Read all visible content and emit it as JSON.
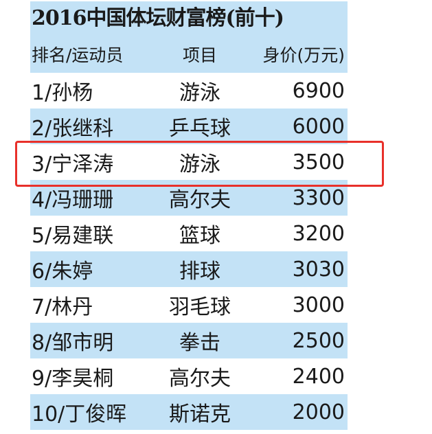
{
  "title": "2016中国体坛财富榜(前十)",
  "headers": [
    "排名/运动员",
    "项目",
    "身价(万元)"
  ],
  "rows": [
    {
      "athlete": "1/孙杨",
      "sport": "游泳",
      "value": "6900"
    },
    {
      "athlete": "2/张继科",
      "sport": "乒乓球",
      "value": "6000"
    },
    {
      "athlete": "3/宁泽涛",
      "sport": "游泳",
      "value": "3500"
    },
    {
      "athlete": "4/冯珊珊",
      "sport": "高尔夫",
      "value": "3300"
    },
    {
      "athlete": "5/易建联",
      "sport": "篮球",
      "value": "3200"
    },
    {
      "athlete": "6/朱婷",
      "sport": "排球",
      "value": "3030"
    },
    {
      "athlete": "7/林丹",
      "sport": "羽毛球",
      "value": "3000"
    },
    {
      "athlete": "8/邹市明",
      "sport": "拳击",
      "value": "2500"
    },
    {
      "athlete": "9/李昊桐",
      "sport": "高尔夫",
      "value": "2400"
    },
    {
      "athlete": "10/丁俊晖",
      "sport": "斯诺克",
      "value": "2000"
    }
  ],
  "highlighted_row": 3,
  "colors": {
    "stripe": "#c3e2f6",
    "highlight": "#e8302a"
  }
}
